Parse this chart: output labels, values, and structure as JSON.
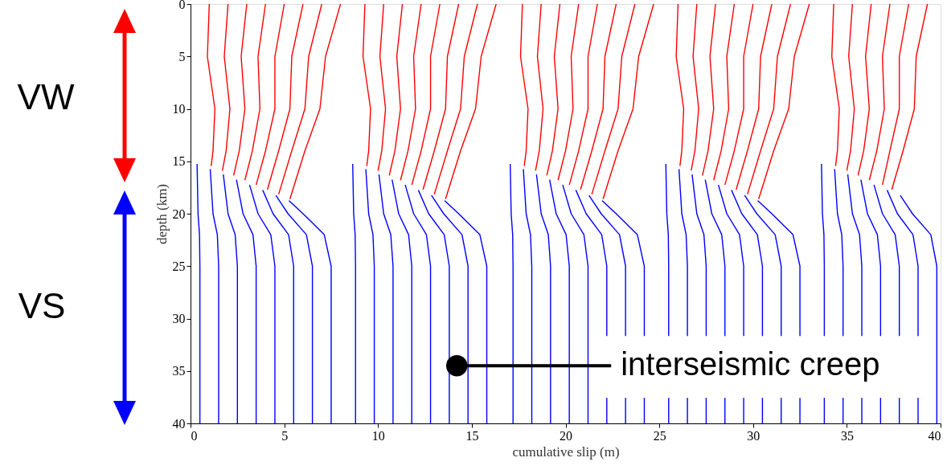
{
  "chart_data": {
    "type": "line",
    "xlabel": "cumulative slip (m)",
    "ylabel": "depth (km)",
    "xlim": [
      0,
      40
    ],
    "ylim": [
      40,
      0
    ],
    "xticks": [
      0,
      5,
      10,
      15,
      20,
      25,
      30,
      35,
      40
    ],
    "yticks": [
      0,
      5,
      10,
      15,
      20,
      25,
      30,
      35,
      40
    ],
    "grid": false,
    "annotations": [
      "VW",
      "VS",
      {
        "text": "interseismic creep",
        "x": 14.2,
        "y": 34.5
      }
    ],
    "series": [
      {
        "color": "#0000ff",
        "x": [
          0.5,
          0.5,
          0.48,
          0.4,
          0.35
        ],
        "values": [
          40,
          25,
          22,
          20,
          15.25
        ]
      },
      {
        "color": "#0000ff",
        "x": [
          1.5,
          1.5,
          1.43,
          1.2,
          1.05
        ],
        "values": [
          40,
          25,
          22,
          20,
          15.75
        ]
      },
      {
        "color": "#0000ff",
        "x": [
          2.5,
          2.5,
          2.38,
          2.0,
          1.75
        ],
        "values": [
          40,
          25,
          22,
          20,
          16.25
        ]
      },
      {
        "color": "#0000ff",
        "x": [
          3.5,
          3.5,
          3.33,
          2.8,
          2.45
        ],
        "values": [
          40,
          25,
          22,
          20,
          16.75
        ]
      },
      {
        "color": "#0000ff",
        "x": [
          4.5,
          4.5,
          4.28,
          3.6,
          3.15
        ],
        "values": [
          40,
          25,
          22,
          20,
          17.25
        ]
      },
      {
        "color": "#0000ff",
        "x": [
          5.5,
          5.5,
          5.23,
          4.4,
          3.85
        ],
        "values": [
          40,
          25,
          22,
          20,
          17.75
        ]
      },
      {
        "color": "#0000ff",
        "x": [
          6.5,
          6.5,
          6.18,
          5.2,
          4.55
        ],
        "values": [
          40,
          25,
          22,
          20,
          18.25
        ]
      },
      {
        "color": "#0000ff",
        "x": [
          7.5,
          7.5,
          7.13,
          6.0,
          5.25
        ],
        "values": [
          40,
          25,
          22,
          20,
          18.75
        ]
      },
      {
        "color": "#ff0000",
        "x": [
          1,
          0.9,
          1.3,
          1.2,
          1.1
        ],
        "values": [
          0,
          5,
          10,
          14,
          15.45
        ]
      },
      {
        "color": "#ff0000",
        "x": [
          2,
          1.8,
          2.1,
          1.9,
          1.7
        ],
        "values": [
          0,
          5,
          10,
          14,
          15.9
        ]
      },
      {
        "color": "#ff0000",
        "x": [
          3,
          2.7,
          2.9,
          2.6,
          2.3
        ],
        "values": [
          0,
          5,
          10,
          14,
          16.35
        ]
      },
      {
        "color": "#ff0000",
        "x": [
          4,
          3.6,
          3.7,
          3.3,
          2.9
        ],
        "values": [
          0,
          5,
          10,
          14,
          16.8
        ]
      },
      {
        "color": "#ff0000",
        "x": [
          5,
          4.5,
          4.5,
          4.0,
          3.5
        ],
        "values": [
          0,
          5,
          10,
          14,
          17.25
        ]
      },
      {
        "color": "#ff0000",
        "x": [
          6,
          5.4,
          5.3,
          4.7,
          4.1
        ],
        "values": [
          0,
          5,
          10,
          14,
          17.7
        ]
      },
      {
        "color": "#ff0000",
        "x": [
          7,
          6.3,
          6.1,
          5.4,
          4.7
        ],
        "values": [
          0,
          5,
          10,
          14,
          18.15
        ]
      },
      {
        "color": "#ff0000",
        "x": [
          8,
          7.2,
          6.9,
          6.1,
          5.3
        ],
        "values": [
          0,
          5,
          10,
          14,
          18.6
        ]
      },
      {
        "color": "#0000ff",
        "x": [
          8.8,
          8.8,
          8.78,
          8.7,
          8.65
        ],
        "values": [
          40,
          25,
          22,
          20,
          15.25
        ]
      },
      {
        "color": "#0000ff",
        "x": [
          9.8,
          9.8,
          9.73,
          9.5,
          9.35
        ],
        "values": [
          40,
          25,
          22,
          20,
          15.75
        ]
      },
      {
        "color": "#0000ff",
        "x": [
          10.8,
          10.8,
          10.68,
          10.3,
          10.05
        ],
        "values": [
          40,
          25,
          22,
          20,
          16.25
        ]
      },
      {
        "color": "#0000ff",
        "x": [
          11.8,
          11.8,
          11.63,
          11.1,
          10.75
        ],
        "values": [
          40,
          25,
          22,
          20,
          16.75
        ]
      },
      {
        "color": "#0000ff",
        "x": [
          12.8,
          12.8,
          12.58,
          11.9,
          11.45
        ],
        "values": [
          40,
          25,
          22,
          20,
          17.25
        ]
      },
      {
        "color": "#0000ff",
        "x": [
          13.8,
          13.8,
          13.53,
          12.7,
          12.15
        ],
        "values": [
          40,
          25,
          22,
          20,
          17.75
        ]
      },
      {
        "color": "#0000ff",
        "x": [
          14.8,
          14.8,
          14.48,
          13.5,
          12.85
        ],
        "values": [
          40,
          25,
          22,
          20,
          18.25
        ]
      },
      {
        "color": "#0000ff",
        "x": [
          15.8,
          15.8,
          15.43,
          14.3,
          13.55
        ],
        "values": [
          40,
          25,
          22,
          20,
          18.75
        ]
      },
      {
        "color": "#ff0000",
        "x": [
          9.3,
          9.2,
          9.6,
          9.5,
          9.4
        ],
        "values": [
          0,
          5,
          10,
          14,
          15.45
        ]
      },
      {
        "color": "#ff0000",
        "x": [
          10.3,
          10.1,
          10.4,
          10.2,
          10.0
        ],
        "values": [
          0,
          5,
          10,
          14,
          15.9
        ]
      },
      {
        "color": "#ff0000",
        "x": [
          11.3,
          11.0,
          11.2,
          10.9,
          10.6
        ],
        "values": [
          0,
          5,
          10,
          14,
          16.35
        ]
      },
      {
        "color": "#ff0000",
        "x": [
          12.3,
          11.9,
          12.0,
          11.6,
          11.2
        ],
        "values": [
          0,
          5,
          10,
          14,
          16.8
        ]
      },
      {
        "color": "#ff0000",
        "x": [
          13.3,
          12.8,
          12.8,
          12.3,
          11.8
        ],
        "values": [
          0,
          5,
          10,
          14,
          17.25
        ]
      },
      {
        "color": "#ff0000",
        "x": [
          14.3,
          13.7,
          13.6,
          13.0,
          12.4
        ],
        "values": [
          0,
          5,
          10,
          14,
          17.7
        ]
      },
      {
        "color": "#ff0000",
        "x": [
          15.3,
          14.6,
          14.4,
          13.7,
          13.0
        ],
        "values": [
          0,
          5,
          10,
          14,
          18.15
        ]
      },
      {
        "color": "#ff0000",
        "x": [
          16.3,
          15.5,
          15.2,
          14.4,
          13.6
        ],
        "values": [
          0,
          5,
          10,
          14,
          18.6
        ]
      },
      {
        "color": "#0000ff",
        "x": [
          17.2,
          17.2,
          17.18,
          17.1,
          17.05
        ],
        "values": [
          40,
          25,
          22,
          20,
          15.25
        ]
      },
      {
        "color": "#0000ff",
        "x": [
          18.2,
          18.2,
          18.13,
          17.9,
          17.75
        ],
        "values": [
          40,
          25,
          22,
          20,
          15.75
        ]
      },
      {
        "color": "#0000ff",
        "x": [
          19.2,
          19.2,
          19.08,
          18.7,
          18.45
        ],
        "values": [
          40,
          25,
          22,
          20,
          16.25
        ]
      },
      {
        "color": "#0000ff",
        "x": [
          20.2,
          20.2,
          20.03,
          19.5,
          19.15
        ],
        "values": [
          40,
          25,
          22,
          20,
          16.75
        ]
      },
      {
        "color": "#0000ff",
        "x": [
          21.2,
          21.2,
          20.98,
          20.3,
          19.85
        ],
        "values": [
          40,
          25,
          22,
          20,
          17.25
        ]
      },
      {
        "color": "#0000ff",
        "x": [
          22.2,
          22.2,
          21.93,
          21.1,
          20.55
        ],
        "values": [
          40,
          25,
          22,
          20,
          17.75
        ]
      },
      {
        "color": "#0000ff",
        "x": [
          23.2,
          23.2,
          22.88,
          21.9,
          21.25
        ],
        "values": [
          40,
          25,
          22,
          20,
          18.25
        ]
      },
      {
        "color": "#0000ff",
        "x": [
          24.2,
          24.2,
          23.83,
          22.7,
          21.95
        ],
        "values": [
          40,
          25,
          22,
          20,
          18.75
        ]
      },
      {
        "color": "#ff0000",
        "x": [
          17.7,
          17.6,
          18.0,
          17.9,
          17.8
        ],
        "values": [
          0,
          5,
          10,
          14,
          15.45
        ]
      },
      {
        "color": "#ff0000",
        "x": [
          18.7,
          18.5,
          18.8,
          18.6,
          18.4
        ],
        "values": [
          0,
          5,
          10,
          14,
          15.9
        ]
      },
      {
        "color": "#ff0000",
        "x": [
          19.7,
          19.4,
          19.6,
          19.3,
          19.0
        ],
        "values": [
          0,
          5,
          10,
          14,
          16.35
        ]
      },
      {
        "color": "#ff0000",
        "x": [
          20.7,
          20.3,
          20.4,
          20.0,
          19.6
        ],
        "values": [
          0,
          5,
          10,
          14,
          16.8
        ]
      },
      {
        "color": "#ff0000",
        "x": [
          21.7,
          21.2,
          21.2,
          20.7,
          20.2
        ],
        "values": [
          0,
          5,
          10,
          14,
          17.25
        ]
      },
      {
        "color": "#ff0000",
        "x": [
          22.7,
          22.1,
          22.0,
          21.4,
          20.8
        ],
        "values": [
          0,
          5,
          10,
          14,
          17.7
        ]
      },
      {
        "color": "#ff0000",
        "x": [
          23.7,
          23.0,
          22.8,
          22.1,
          21.4
        ],
        "values": [
          0,
          5,
          10,
          14,
          18.15
        ]
      },
      {
        "color": "#ff0000",
        "x": [
          24.7,
          23.9,
          23.6,
          22.8,
          22.0
        ],
        "values": [
          0,
          5,
          10,
          14,
          18.6
        ]
      },
      {
        "color": "#0000ff",
        "x": [
          25.5,
          25.5,
          25.48,
          25.4,
          25.35
        ],
        "values": [
          40,
          25,
          22,
          20,
          15.25
        ]
      },
      {
        "color": "#0000ff",
        "x": [
          26.5,
          26.5,
          26.43,
          26.2,
          26.05
        ],
        "values": [
          40,
          25,
          22,
          20,
          15.75
        ]
      },
      {
        "color": "#0000ff",
        "x": [
          27.5,
          27.5,
          27.38,
          27.0,
          26.75
        ],
        "values": [
          40,
          25,
          22,
          20,
          16.25
        ]
      },
      {
        "color": "#0000ff",
        "x": [
          28.5,
          28.5,
          28.33,
          27.8,
          27.45
        ],
        "values": [
          40,
          25,
          22,
          20,
          16.75
        ]
      },
      {
        "color": "#0000ff",
        "x": [
          29.5,
          29.5,
          29.28,
          28.6,
          28.15
        ],
        "values": [
          40,
          25,
          22,
          20,
          17.25
        ]
      },
      {
        "color": "#0000ff",
        "x": [
          30.5,
          30.5,
          30.23,
          29.4,
          28.85
        ],
        "values": [
          40,
          25,
          22,
          20,
          17.75
        ]
      },
      {
        "color": "#0000ff",
        "x": [
          31.5,
          31.5,
          31.18,
          30.2,
          29.55
        ],
        "values": [
          40,
          25,
          22,
          20,
          18.25
        ]
      },
      {
        "color": "#0000ff",
        "x": [
          32.5,
          32.5,
          32.13,
          31.0,
          30.25
        ],
        "values": [
          40,
          25,
          22,
          20,
          18.75
        ]
      },
      {
        "color": "#ff0000",
        "x": [
          26,
          25.9,
          26.3,
          26.2,
          26.1
        ],
        "values": [
          0,
          5,
          10,
          14,
          15.45
        ]
      },
      {
        "color": "#ff0000",
        "x": [
          27,
          26.8,
          27.1,
          26.9,
          26.7
        ],
        "values": [
          0,
          5,
          10,
          14,
          15.9
        ]
      },
      {
        "color": "#ff0000",
        "x": [
          28,
          27.7,
          27.9,
          27.6,
          27.3
        ],
        "values": [
          0,
          5,
          10,
          14,
          16.35
        ]
      },
      {
        "color": "#ff0000",
        "x": [
          29,
          28.6,
          28.7,
          28.3,
          27.9
        ],
        "values": [
          0,
          5,
          10,
          14,
          16.8
        ]
      },
      {
        "color": "#ff0000",
        "x": [
          30,
          29.5,
          29.5,
          29.0,
          28.5
        ],
        "values": [
          0,
          5,
          10,
          14,
          17.25
        ]
      },
      {
        "color": "#ff0000",
        "x": [
          31,
          30.4,
          30.3,
          29.7,
          29.1
        ],
        "values": [
          0,
          5,
          10,
          14,
          17.7
        ]
      },
      {
        "color": "#ff0000",
        "x": [
          32,
          31.3,
          31.1,
          30.4,
          29.7
        ],
        "values": [
          0,
          5,
          10,
          14,
          18.15
        ]
      },
      {
        "color": "#ff0000",
        "x": [
          33,
          32.2,
          31.9,
          31.1,
          30.3
        ],
        "values": [
          0,
          5,
          10,
          14,
          18.6
        ]
      },
      {
        "color": "#0000ff",
        "x": [
          33.8,
          33.8,
          33.78,
          33.7,
          33.65
        ],
        "values": [
          40,
          25,
          22,
          20,
          15.25
        ]
      },
      {
        "color": "#0000ff",
        "x": [
          34.8,
          34.8,
          34.73,
          34.5,
          34.35
        ],
        "values": [
          40,
          25,
          22,
          20,
          15.75
        ]
      },
      {
        "color": "#0000ff",
        "x": [
          35.8,
          35.8,
          35.68,
          35.3,
          35.05
        ],
        "values": [
          40,
          25,
          22,
          20,
          16.25
        ]
      },
      {
        "color": "#0000ff",
        "x": [
          36.8,
          36.8,
          36.63,
          36.1,
          35.75
        ],
        "values": [
          40,
          25,
          22,
          20,
          16.75
        ]
      },
      {
        "color": "#0000ff",
        "x": [
          37.8,
          37.8,
          37.58,
          36.9,
          36.45
        ],
        "values": [
          40,
          25,
          22,
          20,
          17.25
        ]
      },
      {
        "color": "#0000ff",
        "x": [
          38.8,
          38.8,
          38.53,
          37.7,
          37.15
        ],
        "values": [
          40,
          25,
          22,
          20,
          17.75
        ]
      },
      {
        "color": "#0000ff",
        "x": [
          39.8,
          39.8,
          39.48,
          38.5,
          37.85
        ],
        "values": [
          40,
          25,
          22,
          20,
          18.25
        ]
      },
      {
        "color": "#ff0000",
        "x": [
          34.3,
          34.2,
          34.6,
          34.5,
          34.4
        ],
        "values": [
          0,
          5,
          10,
          14,
          15.45
        ]
      },
      {
        "color": "#ff0000",
        "x": [
          35.3,
          35.1,
          35.4,
          35.2,
          35.0
        ],
        "values": [
          0,
          5,
          10,
          14,
          15.9
        ]
      },
      {
        "color": "#ff0000",
        "x": [
          36.3,
          36.0,
          36.2,
          35.9,
          35.6
        ],
        "values": [
          0,
          5,
          10,
          14,
          16.35
        ]
      },
      {
        "color": "#ff0000",
        "x": [
          37.3,
          36.9,
          37.0,
          36.6,
          36.2
        ],
        "values": [
          0,
          5,
          10,
          14,
          16.8
        ]
      },
      {
        "color": "#ff0000",
        "x": [
          38.3,
          37.8,
          37.8,
          37.3,
          36.9
        ],
        "values": [
          0,
          5,
          10,
          14,
          17.25
        ]
      },
      {
        "color": "#ff0000",
        "x": [
          39.3,
          38.7,
          38.6,
          38.0,
          37.4
        ],
        "values": [
          0,
          5,
          10,
          14,
          17.7
        ]
      }
    ]
  }
}
